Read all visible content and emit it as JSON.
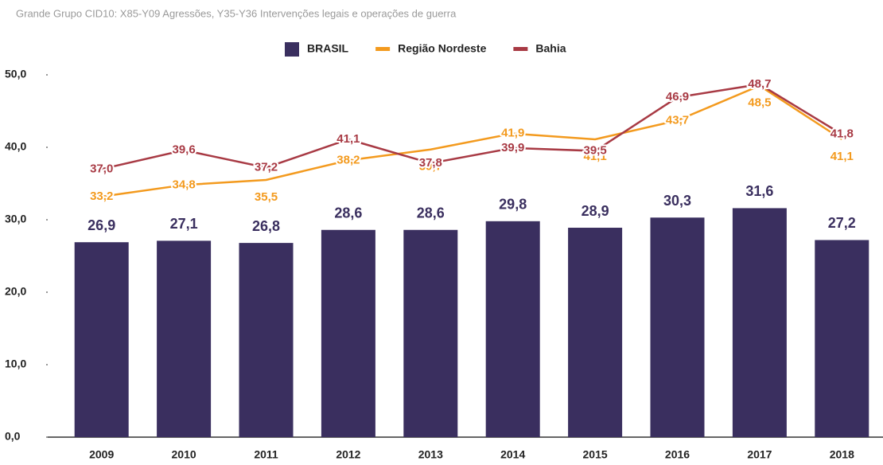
{
  "chart_data": {
    "type": "bar",
    "title": "Grande Grupo CID10: X85-Y09 Agressões, Y35-Y36 Intervenções legais e operações de guerra",
    "categories": [
      "2009",
      "2010",
      "2011",
      "2012",
      "2013",
      "2014",
      "2015",
      "2016",
      "2017",
      "2018"
    ],
    "series": [
      {
        "name": "BRASIL",
        "type": "bar",
        "color": "#3a2f5f",
        "values": [
          26.9,
          27.1,
          26.8,
          28.6,
          28.6,
          29.8,
          28.9,
          30.3,
          31.6,
          27.2
        ],
        "value_labels": [
          "26,9",
          "27,1",
          "26,8",
          "28,6",
          "28,6",
          "29,8",
          "28,9",
          "30,3",
          "31,6",
          "27,2"
        ]
      },
      {
        "name": "Região Nordeste",
        "type": "line",
        "color": "#f39a1e",
        "values": [
          33.2,
          34.8,
          35.5,
          38.2,
          39.7,
          41.9,
          41.1,
          43.7,
          48.5,
          41.1
        ],
        "value_labels": [
          "33,2",
          "34,8",
          "35,5",
          "38,2",
          "39,7",
          "41,9",
          "41,1",
          "43,7",
          "48,5",
          "41,1"
        ]
      },
      {
        "name": "Bahia",
        "type": "line",
        "color": "#a83a44",
        "values": [
          37.0,
          39.6,
          37.2,
          41.1,
          37.8,
          39.9,
          39.5,
          46.9,
          48.7,
          41.8
        ],
        "value_labels": [
          "37,0",
          "39,6",
          "37,2",
          "41,1",
          "37,8",
          "39,9",
          "39,5",
          "46,9",
          "48,7",
          "41,8"
        ]
      }
    ],
    "ylim": [
      0,
      50
    ],
    "yticks": [
      {
        "value": 0,
        "label": "0,0"
      },
      {
        "value": 10,
        "label": "10,0"
      },
      {
        "value": 20,
        "label": "20,0"
      },
      {
        "value": 30,
        "label": "30,0"
      },
      {
        "value": 40,
        "label": "40,0"
      },
      {
        "value": 50,
        "label": "50,0"
      }
    ],
    "grid": false,
    "legend": "top"
  }
}
